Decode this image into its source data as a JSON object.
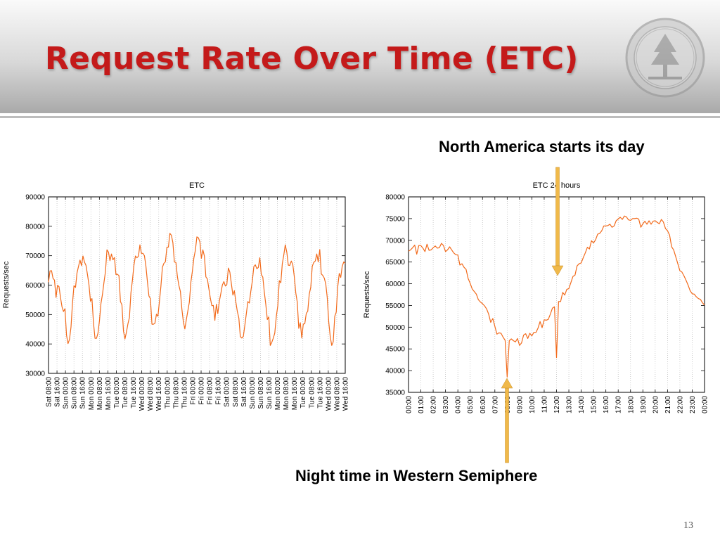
{
  "slide": {
    "title": "Request Rate Over Time (ETC)",
    "page_number": "13",
    "annotation_top": "North America starts its day",
    "annotation_bottom": "Night time in Western Semiphere",
    "colors": {
      "title": "#c41a1a",
      "series": "#f26a1b",
      "arrow": "#f0b94a",
      "grid": "#b8b8b8"
    },
    "logo": "university-seal-icon"
  },
  "chart_data": [
    {
      "type": "line",
      "title": "ETC",
      "xlabel": "",
      "ylabel": "Requests/sec",
      "ylim": [
        30000,
        90000
      ],
      "yticks": [
        "30000",
        "40000",
        "50000",
        "60000",
        "70000",
        "80000",
        "90000"
      ],
      "xticks": [
        "Sat 08:00",
        "Sat 16:00",
        "Sun 00:00",
        "Sun 08:00",
        "Sun 16:00",
        "Mon 00:00",
        "Mon 08:00",
        "Mon 16:00",
        "Tue 00:00",
        "Tue 08:00",
        "Tue 16:00",
        "Wed 00:00",
        "Wed 08:00",
        "Wed 16:00",
        "Thu 00:00",
        "Thu 08:00",
        "Thu 16:00",
        "Fri 00:00",
        "Fri 00:00",
        "Fri 08:00",
        "Fri 16:00",
        "Sat 00:00",
        "Sat 08:00",
        "Sat 16:00",
        "Sun 00:00",
        "Sun 08:00",
        "Sun 16:00",
        "Mon 00:00",
        "Mon 08:00",
        "Mon 16:00",
        "Tue 00:00",
        "Tue 08:00",
        "Tue 16:00",
        "Wed 00:00",
        "Wed 08:00",
        "Wed 16:00"
      ],
      "grid": true,
      "series": [
        {
          "values": [
            61000,
            64800,
            64900,
            62300,
            61700,
            55800,
            59900,
            59500,
            55700,
            52600,
            51000,
            52000,
            43000,
            40100,
            41500,
            45800,
            53900,
            59800,
            59200,
            64100,
            66300,
            68500,
            66600,
            69900,
            67800,
            66700,
            63600,
            60200,
            54500,
            55400,
            47300,
            41900,
            41900,
            43600,
            48000,
            53800,
            56800,
            61000,
            64600,
            72000,
            71200,
            68300,
            70600,
            68600,
            69400,
            63600,
            63700,
            63200,
            54400,
            53300,
            44400,
            41700,
            44000,
            46900,
            49000,
            57400,
            61800,
            66800,
            69900,
            69300,
            69800,
            73700,
            70800,
            70800,
            70000,
            66500,
            61100,
            56300,
            55400,
            46700,
            46700,
            47000,
            50100,
            49400,
            54400,
            59500,
            66100,
            67400,
            67900,
            72900,
            72900,
            77600,
            76900,
            74400,
            67900,
            67700,
            62900,
            59900,
            57800,
            51800,
            47500,
            45100,
            48400,
            51300,
            54200,
            61100,
            64700,
            69200,
            71900,
            76400,
            76100,
            74700,
            69100,
            72000,
            69900,
            62800,
            62100,
            58700,
            55500,
            53000,
            53100,
            48000,
            53500,
            50300,
            54600,
            57200,
            60000,
            61200,
            59700,
            60200,
            65800,
            64400,
            60600,
            56600,
            58100,
            54300,
            51100,
            48800,
            42500,
            42000,
            42600,
            46300,
            50200,
            54400,
            53900,
            57900,
            61400,
            66300,
            66900,
            65600,
            66000,
            69300,
            63600,
            62700,
            57600,
            53500,
            48300,
            49200,
            39500,
            40600,
            42000,
            43700,
            49400,
            53000,
            61500,
            60800,
            67300,
            70200,
            73700,
            71200,
            66800,
            66700,
            68200,
            67000,
            63000,
            57300,
            54200,
            45300,
            47200,
            42000,
            46700,
            46900,
            50400,
            51100,
            56900,
            59300,
            66400,
            67700,
            68200,
            70600,
            67900,
            72100,
            63800,
            63300,
            62400,
            60400,
            55800,
            47300,
            42400,
            39500,
            40700,
            49400,
            50800,
            59400,
            64000,
            62600,
            66400,
            67900,
            67400
          ]
        }
      ]
    },
    {
      "type": "line",
      "title": "ETC 24 hours",
      "xlabel": "",
      "ylabel": "Requests/sec",
      "ylim": [
        35000,
        80000
      ],
      "yticks": [
        "35000",
        "40000",
        "45000",
        "50000",
        "55000",
        "60000",
        "65000",
        "70000",
        "75000",
        "80000"
      ],
      "xticks": [
        "00:00",
        "01:00",
        "02:00",
        "03:00",
        "04:00",
        "05:00",
        "06:00",
        "07:00",
        "08:00",
        "09:00",
        "10:00",
        "11:00",
        "12:00",
        "13:00",
        "14:00",
        "15:00",
        "16:00",
        "17:00",
        "18:00",
        "19:00",
        "20:00",
        "21:00",
        "22:00",
        "23:00",
        "00:00"
      ],
      "grid": true,
      "series": [
        {
          "values": [
            67500,
            67800,
            68300,
            68900,
            66800,
            68800,
            68800,
            68200,
            67400,
            69100,
            67700,
            67800,
            68300,
            68700,
            68200,
            68300,
            69300,
            68800,
            67400,
            67800,
            68500,
            67800,
            67100,
            66700,
            66600,
            64300,
            64600,
            63800,
            63300,
            61200,
            60100,
            58800,
            58200,
            57600,
            56300,
            55800,
            55400,
            54900,
            54200,
            53000,
            51100,
            52000,
            50200,
            48400,
            48700,
            48600,
            47700,
            47000,
            38500,
            46900,
            47300,
            46900,
            46600,
            47400,
            45800,
            46400,
            48200,
            48500,
            47400,
            48600,
            48000,
            48800,
            48800,
            49800,
            51300,
            49900,
            51700,
            51600,
            51800,
            53000,
            54400,
            54700,
            43000,
            55900,
            55900,
            58000,
            57400,
            58700,
            58900,
            60300,
            61700,
            62000,
            64100,
            64600,
            64800,
            66000,
            67100,
            68400,
            68000,
            69900,
            69400,
            70100,
            71400,
            71600,
            72200,
            73300,
            73300,
            73400,
            73700,
            73000,
            73300,
            74500,
            74900,
            75300,
            74800,
            75600,
            75400,
            74700,
            74600,
            75000,
            75000,
            75100,
            74900,
            73000,
            73800,
            74400,
            73700,
            74500,
            73700,
            74400,
            74500,
            74100,
            73800,
            74800,
            74200,
            72700,
            72200,
            71200,
            68500,
            67800,
            66200,
            64600,
            63000,
            62700,
            61800,
            60800,
            59700,
            58400,
            57700,
            57600,
            57000,
            56600,
            56400,
            55600,
            55100
          ]
        }
      ]
    }
  ]
}
